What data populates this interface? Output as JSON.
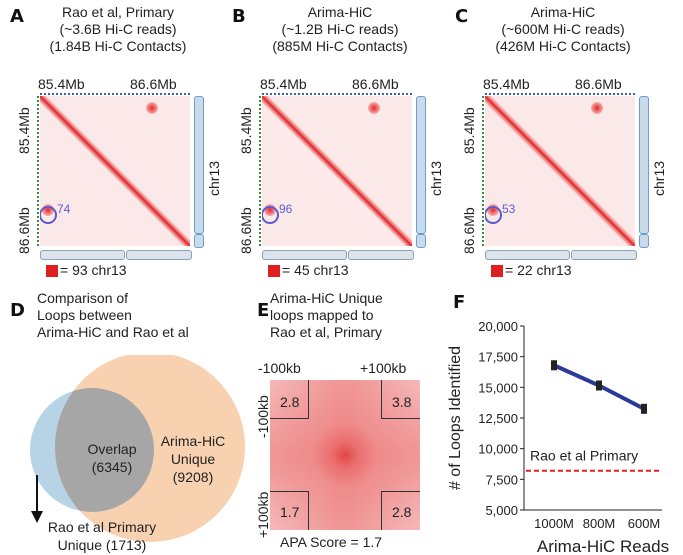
{
  "panels": [
    {
      "letter": "A",
      "title": [
        "Rao et al, Primary",
        "(~3.6B Hi-C reads)",
        "(1.84B Hi-C Contacts)"
      ],
      "top_ticks": [
        "85.4Mb",
        "86.6Mb"
      ],
      "left_ticks": [
        "85.4Mb",
        "86.6Mb"
      ],
      "chr": "chr13",
      "loop_count": "74",
      "legend": "= 93  chr13",
      "top_dot_color": "#3a5fb3",
      "left_dot_color": "#3a8a3a"
    },
    {
      "letter": "B",
      "title": [
        "Arima-HiC",
        "(~1.2B Hi-C reads)",
        "(885M Hi-C Contacts)"
      ],
      "top_ticks": [
        "85.4Mb",
        "86.6Mb"
      ],
      "left_ticks": [
        "85.4Mb",
        "86.6Mb"
      ],
      "chr": "chr13",
      "loop_count": "96",
      "legend": "= 45  chr13",
      "top_dot_color": "#3a5fb3",
      "left_dot_color": "#3a8a3a"
    },
    {
      "letter": "C",
      "title": [
        "Arima-HiC",
        "(~600M Hi-C reads)",
        "(426M Hi-C Contacts)"
      ],
      "top_ticks": [
        "85.4Mb",
        "86.6Mb"
      ],
      "left_ticks": [
        "85.4Mb",
        "86.6Mb"
      ],
      "chr": "chr13",
      "loop_count": "53",
      "legend": "= 22  chr13",
      "top_dot_color": "#3a5fb3",
      "left_dot_color": "#3a8a3a"
    }
  ],
  "venn": {
    "letter": "D",
    "title": [
      "Comparison of",
      "Loops between",
      "Arima-HiC and Rao et al"
    ],
    "overlap_label": "Overlap",
    "overlap_count": "(6345)",
    "arima_label": [
      "Arima-HiC",
      "Unique"
    ],
    "arima_count": "(9208)",
    "rao_label": "Rao et al Primary",
    "rao_count": "Unique (1713)",
    "colors": {
      "rao": "#b7d3e6",
      "arima": "#f8d2b0",
      "overlap": "#a6a6a6"
    }
  },
  "apa": {
    "letter": "E",
    "title": [
      "Arima-HiC Unique",
      "loops mapped to",
      "Rao et al, Primary"
    ],
    "top_left": "-100kb",
    "top_right": "+100kb",
    "left_top": "-100kb",
    "left_bottom": "+100kb",
    "corners": [
      "2.8",
      "3.8",
      "1.7",
      "2.8"
    ],
    "score": "APA Score = 1.7"
  },
  "line_chart": {
    "letter": "F",
    "chart_data": {
      "type": "line",
      "categories": [
        "1000M",
        "800M",
        "600M"
      ],
      "series": [
        {
          "values": [
            16800,
            15150,
            13250
          ]
        }
      ],
      "reference_line": {
        "label": "Rao et al Primary",
        "value": 8200
      },
      "ylabel": "# of Loops Identified",
      "xlabel": "Arima-HiC Reads",
      "ylim": [
        5000,
        20000
      ],
      "yticks": [
        "5,000",
        "7,500",
        "10,000",
        "12,500",
        "15,000",
        "17,500",
        "20,000"
      ],
      "ytick_values": [
        5000,
        7500,
        10000,
        12500,
        15000,
        17500,
        20000
      ],
      "line_color": "#2a3a9a",
      "ref_color": "#e02020"
    }
  }
}
